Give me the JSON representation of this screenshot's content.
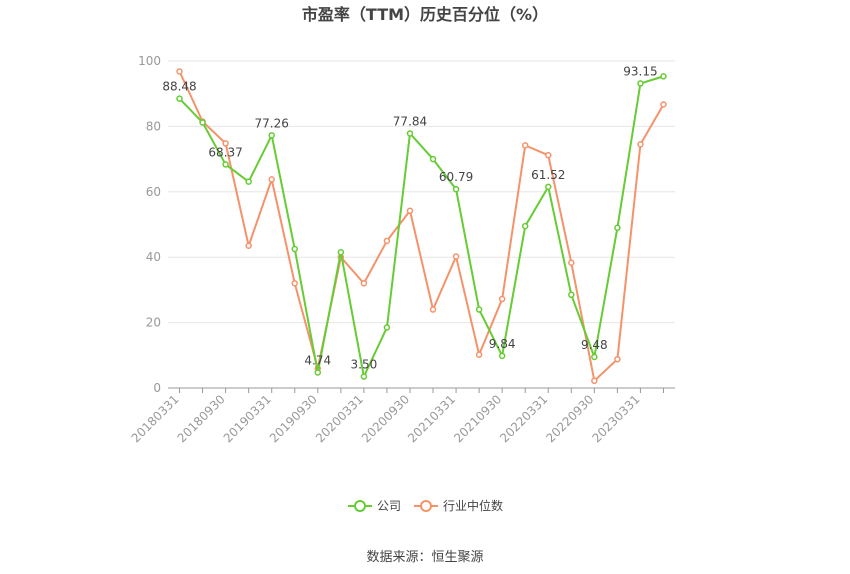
{
  "chart_data": {
    "type": "line",
    "title": "市盈率（TTM）历史百分位（%）",
    "ylim": [
      0,
      100
    ],
    "yticks": [
      0,
      20,
      40,
      60,
      80,
      100
    ],
    "grid": true,
    "legend_position": "bottom",
    "x_tick_labels": [
      "20180331",
      "20180930",
      "20190331",
      "20190930",
      "20200331",
      "20200930",
      "20210331",
      "20210930",
      "20220331",
      "20220930",
      "20230331"
    ],
    "x": [
      "20180331",
      "20180630",
      "20180930",
      "20181231",
      "20190331",
      "20190630",
      "20190930",
      "20191231",
      "20200331",
      "20200630",
      "20200930",
      "20201231",
      "20210331",
      "20210630",
      "20210930",
      "20211231",
      "20220331",
      "20220630",
      "20220930",
      "20221231",
      "20230331",
      "20230630"
    ],
    "series": [
      {
        "name": "公司",
        "color": "#66cc33",
        "values": [
          88.48,
          81.2,
          68.37,
          63.1,
          77.26,
          42.5,
          4.74,
          41.5,
          3.5,
          18.5,
          77.84,
          70.0,
          60.79,
          24.0,
          9.84,
          49.5,
          61.52,
          28.5,
          9.48,
          49.0,
          93.15,
          95.3
        ],
        "labels": {
          "0": "88.48",
          "2": "68.37",
          "4": "77.26",
          "6": "4.74",
          "8": "3.50",
          "10": "77.84",
          "12": "60.79",
          "14": "9.84",
          "16": "61.52",
          "18": "9.48",
          "20": "93.15"
        }
      },
      {
        "name": "行业中位数",
        "color": "#f4936b",
        "values": [
          96.8,
          81.5,
          74.8,
          43.5,
          63.8,
          32.0,
          6.0,
          40.0,
          32.0,
          45.0,
          54.2,
          24.0,
          40.2,
          10.2,
          27.2,
          74.2,
          71.2,
          38.3,
          2.2,
          8.8,
          74.5,
          86.7
        ]
      }
    ]
  },
  "legend": [
    {
      "name": "公司",
      "color": "#66cc33"
    },
    {
      "name": "行业中位数",
      "color": "#f4936b"
    }
  ],
  "source": "数据来源：恒生聚源"
}
